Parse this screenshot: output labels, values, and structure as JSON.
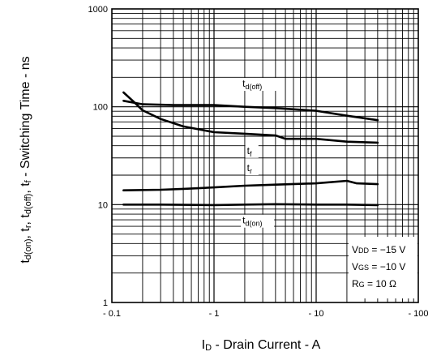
{
  "chart_data": {
    "type": "line",
    "title": "",
    "xlabel": "ID - Drain Current - A",
    "xlabel_parts": {
      "main": "I",
      "sub": "D",
      "rest": " - Drain Current - A"
    },
    "ylabel": "td(on), tr, td(off), tf - Switching Time - ns",
    "ylabel_parts": [
      {
        "text": "t",
        "sub": false
      },
      {
        "text": "d(on)",
        "sub": true
      },
      {
        "text": ", t",
        "sub": false
      },
      {
        "text": "r",
        "sub": true
      },
      {
        "text": ", t",
        "sub": false
      },
      {
        "text": "d(off)",
        "sub": true
      },
      {
        "text": ", t",
        "sub": false
      },
      {
        "text": "f",
        "sub": true
      },
      {
        "text": " - Switching Time - ns",
        "sub": false
      }
    ],
    "x_scale": "log",
    "y_scale": "log",
    "xlim": [
      0.1,
      100
    ],
    "ylim": [
      1,
      1000
    ],
    "x_ticks": [
      {
        "value": 0.1,
        "label": "- 0.1"
      },
      {
        "value": 1,
        "label": "- 1"
      },
      {
        "value": 10,
        "label": "- 10"
      },
      {
        "value": 100,
        "label": "- 100"
      }
    ],
    "y_ticks": [
      {
        "value": 1,
        "label": "1"
      },
      {
        "value": 10,
        "label": "10"
      },
      {
        "value": 100,
        "label": "100"
      },
      {
        "value": 1000,
        "label": "1000"
      }
    ],
    "grid": true,
    "series": [
      {
        "name": "td(off)",
        "label_main": "t",
        "label_sub": "d(off)",
        "x": [
          0.13,
          0.2,
          0.4,
          1,
          2,
          4,
          10,
          20,
          40
        ],
        "values": [
          115,
          106,
          104,
          104,
          100,
          97,
          91,
          81,
          73
        ]
      },
      {
        "name": "tf",
        "label_main": "t",
        "label_sub": "f",
        "x": [
          0.13,
          0.16,
          0.2,
          0.3,
          0.5,
          1,
          2,
          4,
          5,
          10,
          20,
          40
        ],
        "values": [
          140,
          115,
          92,
          75,
          63,
          55,
          53,
          51,
          47,
          47,
          44,
          43
        ]
      },
      {
        "name": "tr",
        "label_main": "t",
        "label_sub": "r",
        "x": [
          0.13,
          0.3,
          0.5,
          1,
          2,
          4,
          10,
          20,
          25,
          40
        ],
        "values": [
          14,
          14.2,
          14.5,
          15,
          15.6,
          16,
          16.5,
          17.5,
          16.5,
          16.2
        ]
      },
      {
        "name": "td(on)",
        "label_main": "t",
        "label_sub": "d(on)",
        "x": [
          0.13,
          0.3,
          1,
          2,
          4,
          10,
          20,
          40
        ],
        "values": [
          10,
          10,
          9.9,
          10,
          10.1,
          10,
          10,
          9.9
        ]
      }
    ],
    "conditions": [
      {
        "main": "V",
        "sub": "DD",
        "rest": " = −15 V"
      },
      {
        "main": "V",
        "sub": "GS",
        "rest": " = −10 V"
      },
      {
        "main": "R",
        "sub": "G",
        "rest": " = 10 Ω"
      }
    ]
  }
}
